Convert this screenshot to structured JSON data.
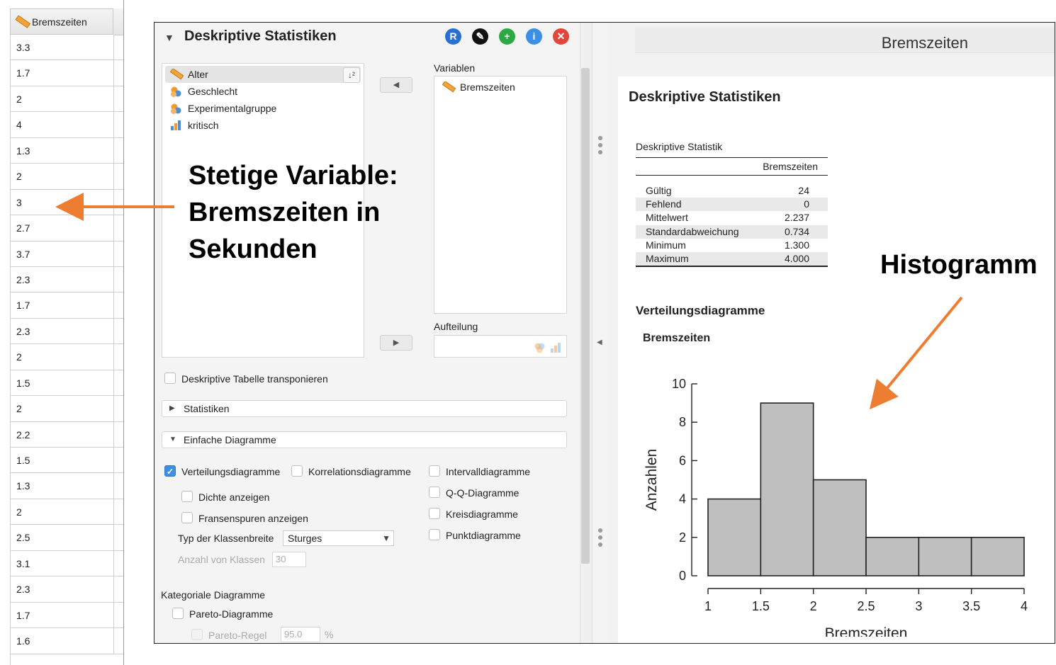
{
  "sheet": {
    "column_header": "Bremszeiten",
    "values": [
      "3.3",
      "1.7",
      "2",
      "4",
      "1.3",
      "2",
      "3",
      "2.7",
      "3.7",
      "2.3",
      "1.7",
      "2.3",
      "2",
      "1.5",
      "2",
      "2.2",
      "1.5",
      "1.3",
      "2",
      "2.5",
      "3.1",
      "2.3",
      "1.7",
      "1.6"
    ]
  },
  "analysis": {
    "title": "Deskriptive Statistiken",
    "buttons": [
      {
        "name": "r-syntax-button",
        "glyph": "R",
        "color": "#2a6fd0"
      },
      {
        "name": "edit-title-button",
        "glyph": "✎",
        "color": "#111111"
      },
      {
        "name": "duplicate-button",
        "glyph": "+",
        "color": "#2ea745"
      },
      {
        "name": "info-button",
        "glyph": "i",
        "color": "#3d8fe6"
      },
      {
        "name": "close-button",
        "glyph": "✕",
        "color": "#e0463c"
      }
    ],
    "variables": [
      {
        "label": "Alter",
        "icon": "scale-ruler-icon"
      },
      {
        "label": "Geschlecht",
        "icon": "nominal-icon"
      },
      {
        "label": "Experimentalgruppe",
        "icon": "nominal-icon"
      },
      {
        "label": "kritisch",
        "icon": "ordinal-icon"
      }
    ],
    "variables_label": "Variablen",
    "assigned_variable": "Bremszeiten",
    "split_label": "Aufteilung",
    "transpose_label": "Deskriptive Tabelle transponieren",
    "section_statistics": "Statistiken",
    "section_basic_plots": "Einfache Diagramme",
    "distribution_plots": "Verteilungsdiagramme",
    "correlation_plots": "Korrelationsdiagramme",
    "show_density": "Dichte anzeigen",
    "show_rug": "Fransenspuren anzeigen",
    "bin_width_label": "Typ der Klassenbreite",
    "bin_width_value": "Sturges",
    "num_bins_label": "Anzahl von Klassen",
    "num_bins_value": "30",
    "interval_plots": "Intervalldiagramme",
    "qq_plots": "Q-Q-Diagramme",
    "pie_charts": "Kreisdiagramme",
    "dot_plots": "Punktdiagramme",
    "categorical_plots": "Kategoriale Diagramme",
    "pareto_plots": "Pareto-Diagramme",
    "pareto_rule_label": "Pareto-Regel",
    "pareto_rule_value": "95.0",
    "pareto_percent": "%"
  },
  "results": {
    "header_title": "Bremszeiten",
    "heading": "Deskriptive Statistiken",
    "table_caption": "Deskriptive Statistik",
    "table_column": "Bremszeiten",
    "table_rows": [
      {
        "label": "Gültig",
        "value": "24"
      },
      {
        "label": "Fehlend",
        "value": "0"
      },
      {
        "label": "Mittelwert",
        "value": "2.237"
      },
      {
        "label": "Standardabweichung",
        "value": "0.734"
      },
      {
        "label": "Minimum",
        "value": "1.300"
      },
      {
        "label": "Maximum",
        "value": "4.000"
      }
    ],
    "dist_heading": "Verteilungsdiagramme",
    "plot_title": "Bremszeiten"
  },
  "chart_data": {
    "type": "bar",
    "title": "Bremszeiten",
    "xlabel": "Bremszeiten",
    "ylabel": "Anzahlen",
    "bins": [
      [
        1,
        1.5
      ],
      [
        1.5,
        2
      ],
      [
        2,
        2.5
      ],
      [
        2.5,
        3
      ],
      [
        3,
        3.5
      ],
      [
        3.5,
        4
      ]
    ],
    "values": [
      4,
      9,
      5,
      2,
      2,
      2
    ],
    "x_ticks": [
      "1",
      "1.5",
      "2",
      "2.5",
      "3",
      "3.5",
      "4"
    ],
    "y_ticks": [
      "0",
      "2",
      "4",
      "6",
      "8",
      "10"
    ],
    "xlim": [
      1,
      4
    ],
    "ylim": [
      0,
      10
    ],
    "bar_color": "#bfbfbf",
    "grid": false
  },
  "annotations": {
    "variable_note": [
      "Stetige Variable:",
      "Bremszeiten in",
      "Sekunden"
    ],
    "histogram_note": "Histogramm",
    "arrow_color": "#ed7d31"
  }
}
